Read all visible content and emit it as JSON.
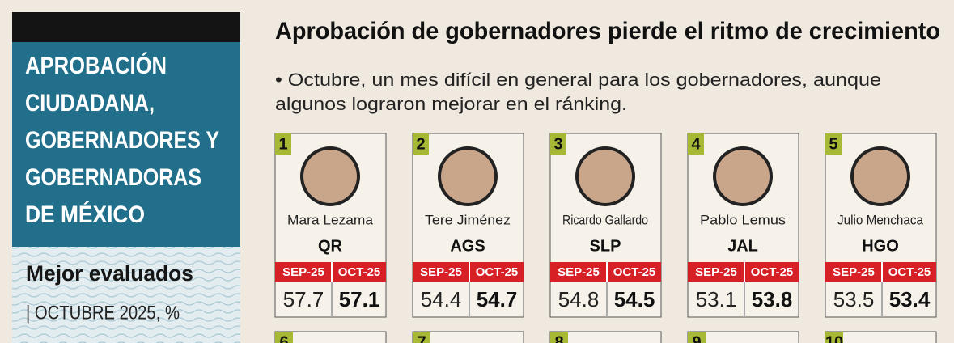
{
  "sidebar": {
    "header_lines": [
      "APROBACIÓN",
      "CIUDADANA,",
      "GOBERNADORES Y",
      "GOBERNADORAS",
      "DE MÉXICO"
    ],
    "subtitle": "Mejor evaluados",
    "period": "| OCTUBRE 2025, %"
  },
  "main": {
    "title": "Aprobación de gobernadores pierde el ritmo de crecimiento",
    "bullet_lines": [
      "• Octubre, un mes difícil en general para los gobernadores, aunque",
      "algunos lograron mejorar en el ránking."
    ]
  },
  "column_labels": [
    "SEP-25",
    "OCT-25"
  ],
  "cards": [
    {
      "rank": 1,
      "name": "Mara Lezama",
      "state": "QR",
      "sep": 57.7,
      "oct": 57.1
    },
    {
      "rank": 2,
      "name": "Tere Jiménez",
      "state": "AGS",
      "sep": 54.4,
      "oct": 54.7
    },
    {
      "rank": 3,
      "name": "Ricardo Gallardo",
      "state": "SLP",
      "sep": 54.8,
      "oct": 54.5
    },
    {
      "rank": 4,
      "name": "Pablo Lemus",
      "state": "JAL",
      "sep": 53.1,
      "oct": 53.8
    },
    {
      "rank": 5,
      "name": "Julio Menchaca",
      "state": "HGO",
      "sep": 53.5,
      "oct": 53.4
    }
  ],
  "next_ranks": [
    6,
    7,
    8,
    9,
    10
  ]
}
